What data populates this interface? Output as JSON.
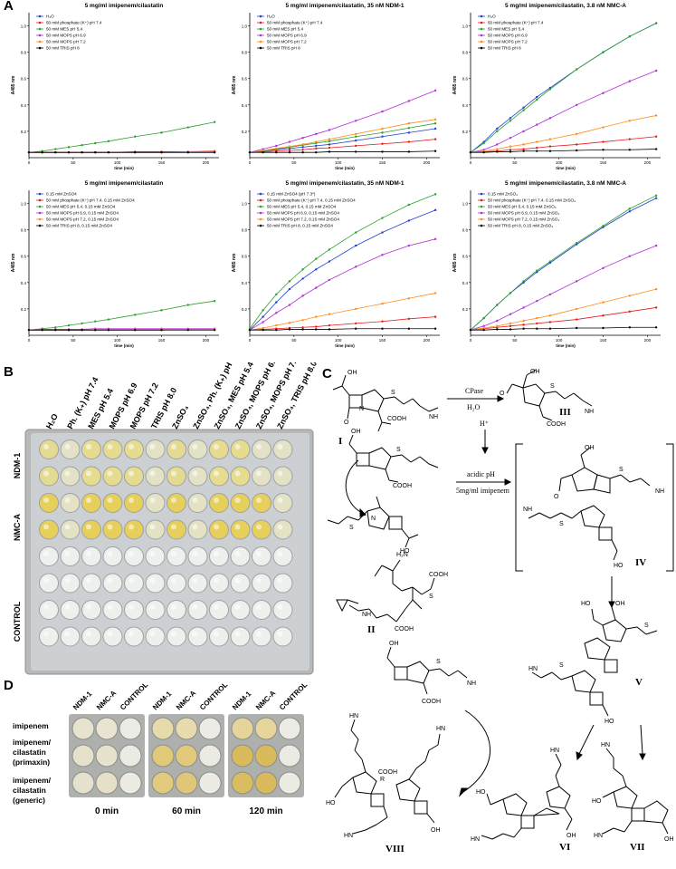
{
  "panels": {
    "A": "A",
    "B": "B",
    "C": "C",
    "D": "D"
  },
  "chart_data": [
    {
      "type": "line",
      "title": "5 mg/ml imipenem/cilastatin",
      "xlabel": "time (min)",
      "ylabel": "A485 nm",
      "xticks": [
        "0",
        "50",
        "100",
        "150",
        "200"
      ],
      "yticks": [
        "0.2",
        "0.4",
        "0.6",
        "0.8",
        "1.0"
      ],
      "xlim": [
        0,
        215
      ],
      "ylim": [
        0,
        1.1
      ],
      "x": [
        0,
        15,
        30,
        45,
        60,
        75,
        90,
        120,
        150,
        180,
        210
      ],
      "legend_position": "top-left",
      "series": [
        {
          "name": "H₂O",
          "color": "#1f3fd6",
          "values": [
            0.04,
            0.04,
            0.04,
            0.04,
            0.04,
            0.04,
            0.04,
            0.04,
            0.04,
            0.04,
            0.04
          ]
        },
        {
          "name": "50 mM phosphate (K⁺) pH 7.4",
          "color": "#e41a1c",
          "values": [
            0.04,
            0.04,
            0.04,
            0.04,
            0.04,
            0.04,
            0.04,
            0.045,
            0.045,
            0.045,
            0.05
          ]
        },
        {
          "name": "50 mM MES pH 5.4",
          "color": "#2ca02c",
          "values": [
            0.04,
            0.05,
            0.065,
            0.08,
            0.095,
            0.11,
            0.125,
            0.16,
            0.19,
            0.23,
            0.27
          ]
        },
        {
          "name": "50 mM MOPS pH 6.9",
          "color": "#b22fd6",
          "values": [
            0.04,
            0.04,
            0.04,
            0.04,
            0.04,
            0.04,
            0.04,
            0.04,
            0.04,
            0.045,
            0.045
          ]
        },
        {
          "name": "50 mM MOPS pH 7.2",
          "color": "#ff8c1a",
          "values": [
            0.04,
            0.04,
            0.04,
            0.04,
            0.04,
            0.04,
            0.04,
            0.04,
            0.04,
            0.045,
            0.045
          ]
        },
        {
          "name": "50 mM TRIS pH 8",
          "color": "#000000",
          "values": [
            0.04,
            0.04,
            0.04,
            0.04,
            0.04,
            0.04,
            0.04,
            0.04,
            0.04,
            0.04,
            0.04
          ]
        }
      ]
    },
    {
      "type": "line",
      "title": "5 mg/ml imipenem/cilastatin, 35 nM NDM-1",
      "xlabel": "time (min)",
      "ylabel": "A485 nm",
      "xticks": [
        "0",
        "50",
        "100",
        "150",
        "200"
      ],
      "yticks": [
        "0.2",
        "0.4",
        "0.6",
        "0.8",
        "1.0"
      ],
      "xlim": [
        0,
        215
      ],
      "ylim": [
        0,
        1.1
      ],
      "x": [
        0,
        15,
        30,
        45,
        60,
        75,
        90,
        120,
        150,
        180,
        210
      ],
      "legend_position": "top-left",
      "series": [
        {
          "name": "H₂O",
          "color": "#1f3fd6",
          "values": [
            0.04,
            0.05,
            0.06,
            0.07,
            0.08,
            0.09,
            0.1,
            0.13,
            0.16,
            0.19,
            0.22
          ]
        },
        {
          "name": "50 mM phosphate (K⁺) pH 7.4",
          "color": "#e41a1c",
          "values": [
            0.04,
            0.045,
            0.05,
            0.055,
            0.06,
            0.07,
            0.075,
            0.09,
            0.105,
            0.12,
            0.14
          ]
        },
        {
          "name": "50 mM MES pH 5.4",
          "color": "#2ca02c",
          "values": [
            0.04,
            0.05,
            0.065,
            0.08,
            0.095,
            0.11,
            0.125,
            0.16,
            0.19,
            0.225,
            0.26
          ]
        },
        {
          "name": "50 mM MOPS pH 6.9",
          "color": "#b22fd6",
          "values": [
            0.04,
            0.065,
            0.09,
            0.12,
            0.15,
            0.18,
            0.21,
            0.28,
            0.35,
            0.43,
            0.51
          ]
        },
        {
          "name": "50 mM MOPS pH 7.2",
          "color": "#ff8c1a",
          "values": [
            0.04,
            0.055,
            0.07,
            0.085,
            0.1,
            0.12,
            0.14,
            0.18,
            0.22,
            0.26,
            0.29
          ]
        },
        {
          "name": "50 mM TRIS pH 8",
          "color": "#000000",
          "values": [
            0.04,
            0.04,
            0.04,
            0.04,
            0.04,
            0.04,
            0.045,
            0.045,
            0.045,
            0.045,
            0.05
          ]
        }
      ]
    },
    {
      "type": "line",
      "title": "5 mg/ml imipenem/cilastatin, 3.8 nM NMC-A",
      "xlabel": "time (min)",
      "ylabel": "A485 nm",
      "xticks": [
        "0",
        "50",
        "100",
        "150",
        "200"
      ],
      "yticks": [
        "0.2",
        "0.4",
        "0.6",
        "0.8",
        "1.0"
      ],
      "xlim": [
        0,
        215
      ],
      "ylim": [
        0,
        1.1
      ],
      "x": [
        0,
        15,
        30,
        45,
        60,
        75,
        90,
        120,
        150,
        180,
        210
      ],
      "legend_position": "top-left",
      "series": [
        {
          "name": "H₂O",
          "color": "#1f3fd6",
          "values": [
            0.04,
            0.12,
            0.22,
            0.3,
            0.38,
            0.46,
            0.53,
            0.67,
            0.8,
            0.92,
            1.02
          ]
        },
        {
          "name": "50 mM phosphate (K⁺) pH 7.4",
          "color": "#e41a1c",
          "values": [
            0.04,
            0.045,
            0.05,
            0.06,
            0.065,
            0.075,
            0.085,
            0.1,
            0.12,
            0.14,
            0.16
          ]
        },
        {
          "name": "50 mM MES pH 5.4",
          "color": "#2ca02c",
          "values": [
            0.04,
            0.11,
            0.2,
            0.28,
            0.36,
            0.44,
            0.52,
            0.67,
            0.8,
            0.92,
            1.02
          ]
        },
        {
          "name": "50 mM MOPS pH 6.9",
          "color": "#b22fd6",
          "values": [
            0.04,
            0.06,
            0.1,
            0.15,
            0.2,
            0.25,
            0.3,
            0.4,
            0.49,
            0.58,
            0.66
          ]
        },
        {
          "name": "50 mM MOPS pH 7.2",
          "color": "#ff8c1a",
          "values": [
            0.04,
            0.05,
            0.065,
            0.085,
            0.1,
            0.12,
            0.14,
            0.18,
            0.23,
            0.28,
            0.32
          ]
        },
        {
          "name": "50 mM TRIS pH 8",
          "color": "#000000",
          "values": [
            0.04,
            0.04,
            0.045,
            0.045,
            0.05,
            0.05,
            0.05,
            0.055,
            0.06,
            0.06,
            0.065
          ]
        }
      ]
    },
    {
      "type": "line",
      "title": "5 mg/ml imipenem/cilastatin",
      "xlabel": "time (min)",
      "ylabel": "A485 nm",
      "xticks": [
        "0",
        "50",
        "100",
        "150",
        "200"
      ],
      "yticks": [
        "0.2",
        "0.4",
        "0.6",
        "0.8",
        "1.0"
      ],
      "xlim": [
        0,
        215
      ],
      "ylim": [
        0,
        1.1
      ],
      "x": [
        0,
        15,
        30,
        45,
        60,
        75,
        90,
        120,
        150,
        180,
        210
      ],
      "legend_position": "top-left",
      "series": [
        {
          "name": "0.15 mM ZnSO4",
          "color": "#1f3fd6",
          "values": [
            0.04,
            0.04,
            0.04,
            0.04,
            0.04,
            0.04,
            0.04,
            0.04,
            0.04,
            0.045,
            0.045
          ]
        },
        {
          "name": "50 mM phosphate (K⁺) pH 7.4, 0.15 mM ZnSO4",
          "color": "#e41a1c",
          "values": [
            0.04,
            0.04,
            0.04,
            0.04,
            0.04,
            0.04,
            0.04,
            0.04,
            0.04,
            0.045,
            0.045
          ]
        },
        {
          "name": "50 mM MES pH 5.4, 0.15 mM ZnSO4",
          "color": "#2ca02c",
          "values": [
            0.04,
            0.05,
            0.06,
            0.075,
            0.09,
            0.105,
            0.12,
            0.155,
            0.19,
            0.23,
            0.26
          ]
        },
        {
          "name": "50 mM MOPS pH 6.9, 0.15 mM ZnSO4",
          "color": "#b22fd6",
          "values": [
            0.04,
            0.045,
            0.045,
            0.045,
            0.045,
            0.05,
            0.05,
            0.05,
            0.05,
            0.05,
            0.05
          ]
        },
        {
          "name": "50 mM MOPS pH 7.2, 0.15 mM ZnSO4",
          "color": "#ff8c1a",
          "values": [
            0.04,
            0.04,
            0.04,
            0.04,
            0.04,
            0.045,
            0.045,
            0.045,
            0.045,
            0.045,
            0.045
          ]
        },
        {
          "name": "50 mM TRIS pH 8, 0.15 mM ZnSO4",
          "color": "#000000",
          "values": [
            0.04,
            0.04,
            0.04,
            0.04,
            0.04,
            0.04,
            0.04,
            0.04,
            0.04,
            0.04,
            0.04
          ]
        }
      ]
    },
    {
      "type": "line",
      "title": "5 mg/ml imipenem/cilastatin, 35 nM NDM-1",
      "xlabel": "time (min)",
      "ylabel": "A485 nm",
      "xticks": [
        "0",
        "50",
        "100",
        "150",
        "200"
      ],
      "yticks": [
        "0.2",
        "0.4",
        "0.6",
        "0.8",
        "1.0"
      ],
      "xlim": [
        0,
        215
      ],
      "ylim": [
        0,
        1.1
      ],
      "x": [
        0,
        15,
        30,
        45,
        60,
        75,
        90,
        120,
        150,
        180,
        210
      ],
      "legend_position": "top-left",
      "series": [
        {
          "name": "0.15 mM ZnSO4 (pH 7.3*)",
          "color": "#1f3fd6",
          "values": [
            0.04,
            0.14,
            0.25,
            0.35,
            0.43,
            0.5,
            0.56,
            0.68,
            0.78,
            0.87,
            0.95
          ]
        },
        {
          "name": "50 mM phosphate (K⁺) pH 7.4, 0.15 mM ZnSO4",
          "color": "#e41a1c",
          "values": [
            0.04,
            0.045,
            0.05,
            0.055,
            0.06,
            0.065,
            0.075,
            0.09,
            0.105,
            0.125,
            0.14
          ]
        },
        {
          "name": "50 mM MES pH 5.4, 0.15 mM ZnSO4",
          "color": "#2ca02c",
          "values": [
            0.05,
            0.19,
            0.31,
            0.41,
            0.5,
            0.58,
            0.65,
            0.78,
            0.89,
            0.99,
            1.07
          ]
        },
        {
          "name": "50 mM MOPS pH 6.9, 0.15 mM ZnSO4",
          "color": "#b22fd6",
          "values": [
            0.04,
            0.1,
            0.17,
            0.23,
            0.3,
            0.36,
            0.42,
            0.52,
            0.61,
            0.68,
            0.73
          ]
        },
        {
          "name": "50 mM MOPS pH 7.2, 0.15 mM ZnSO4",
          "color": "#ff8c1a",
          "values": [
            0.04,
            0.055,
            0.075,
            0.095,
            0.115,
            0.14,
            0.16,
            0.2,
            0.24,
            0.28,
            0.32
          ]
        },
        {
          "name": "50 mM TRIS pH 8, 0.15 mM ZnSO4",
          "color": "#000000",
          "values": [
            0.04,
            0.04,
            0.04,
            0.045,
            0.045,
            0.045,
            0.045,
            0.05,
            0.05,
            0.05,
            0.05
          ]
        }
      ]
    },
    {
      "type": "line",
      "title": "5 mg/ml imipenem/cilastatin, 3.8 nM NMC-A",
      "xlabel": "time (min)",
      "ylabel": "A485 nm",
      "xticks": [
        "0",
        "50",
        "100",
        "150",
        "200"
      ],
      "yticks": [
        "0.2",
        "0.4",
        "0.6",
        "0.8",
        "1.0"
      ],
      "xlim": [
        0,
        215
      ],
      "ylim": [
        0,
        1.1
      ],
      "x": [
        0,
        15,
        30,
        45,
        60,
        75,
        90,
        120,
        150,
        180,
        210
      ],
      "legend_position": "top-left",
      "series": [
        {
          "name": "0.15 mM ZnSO₄",
          "color": "#1f3fd6",
          "values": [
            0.04,
            0.13,
            0.23,
            0.32,
            0.4,
            0.48,
            0.55,
            0.69,
            0.82,
            0.94,
            1.04
          ]
        },
        {
          "name": "50 mM phosphate (K⁺) pH 7.4, 0.15 mM ZnSO₄",
          "color": "#e41a1c",
          "values": [
            0.04,
            0.05,
            0.06,
            0.07,
            0.08,
            0.09,
            0.1,
            0.12,
            0.15,
            0.18,
            0.21
          ]
        },
        {
          "name": "50 mM MES pH 5.4, 0.15 mM ZnSO₄",
          "color": "#2ca02c",
          "values": [
            0.04,
            0.13,
            0.23,
            0.32,
            0.41,
            0.49,
            0.56,
            0.7,
            0.83,
            0.96,
            1.06
          ]
        },
        {
          "name": "50 mM MOPS pH 6.9, 0.15 mM ZnSO₄",
          "color": "#b22fd6",
          "values": [
            0.04,
            0.07,
            0.11,
            0.16,
            0.21,
            0.26,
            0.31,
            0.41,
            0.51,
            0.6,
            0.68
          ]
        },
        {
          "name": "50 mM MOPS pH 7.2, 0.15 mM ZnSO₄",
          "color": "#ff8c1a",
          "values": [
            0.04,
            0.055,
            0.07,
            0.09,
            0.11,
            0.13,
            0.15,
            0.2,
            0.25,
            0.3,
            0.35
          ]
        },
        {
          "name": "50 mM TRIS pH 8, 0.15 mM ZnSO₄",
          "color": "#000000",
          "values": [
            0.04,
            0.04,
            0.045,
            0.045,
            0.05,
            0.05,
            0.05,
            0.055,
            0.055,
            0.06,
            0.06
          ]
        }
      ]
    }
  ],
  "plate_b": {
    "column_labels": [
      "H₂O",
      "Ph. (K₊) pH 7.4",
      "MES pH 5.4",
      "MOPS pH 6.9",
      "MOPS pH 7.2",
      "TRIS pH 8.0",
      "ZnSO₄",
      "ZnSO₄, Ph. (K₊) pH 7.4",
      "ZnSO₄, MES pH 5.4",
      "ZnSO₄, MOPS pH 6.9",
      "ZnSO₄, MOPS pH 7.2",
      "ZnSO₄, TRIS pH 8.0"
    ],
    "row_labels": [
      "NDM-1",
      "NMC-A",
      "CONTROL"
    ]
  },
  "scheme_c": {
    "reagent_top": "CPase",
    "solvent_top": "H₂O",
    "acid": "H⁺",
    "cond1": "acidic pH",
    "cond2": "5mg/ml imipenem",
    "compounds": [
      "I",
      "II",
      "III",
      "IV",
      "V",
      "VI",
      "VII",
      "VIII"
    ],
    "atom_labels": {
      "OH": "OH",
      "HO": "HO",
      "O": "O",
      "N": "N",
      "S": "S",
      "H": "H",
      "NH": "NH",
      "NH2": "H₂N",
      "COOH": "COOH",
      "R": "R",
      "HN": "HN"
    }
  },
  "panel_d": {
    "column_labels": [
      "NDM-1",
      "NMC-A",
      "CONTROL"
    ],
    "row_labels": [
      "imipenem",
      "imipenem/\ncilastatin\n(primaxin)",
      "imipenem/\ncilastatin\n(generic)"
    ],
    "time_labels": [
      "0 min",
      "60 min",
      "120 min"
    ]
  }
}
